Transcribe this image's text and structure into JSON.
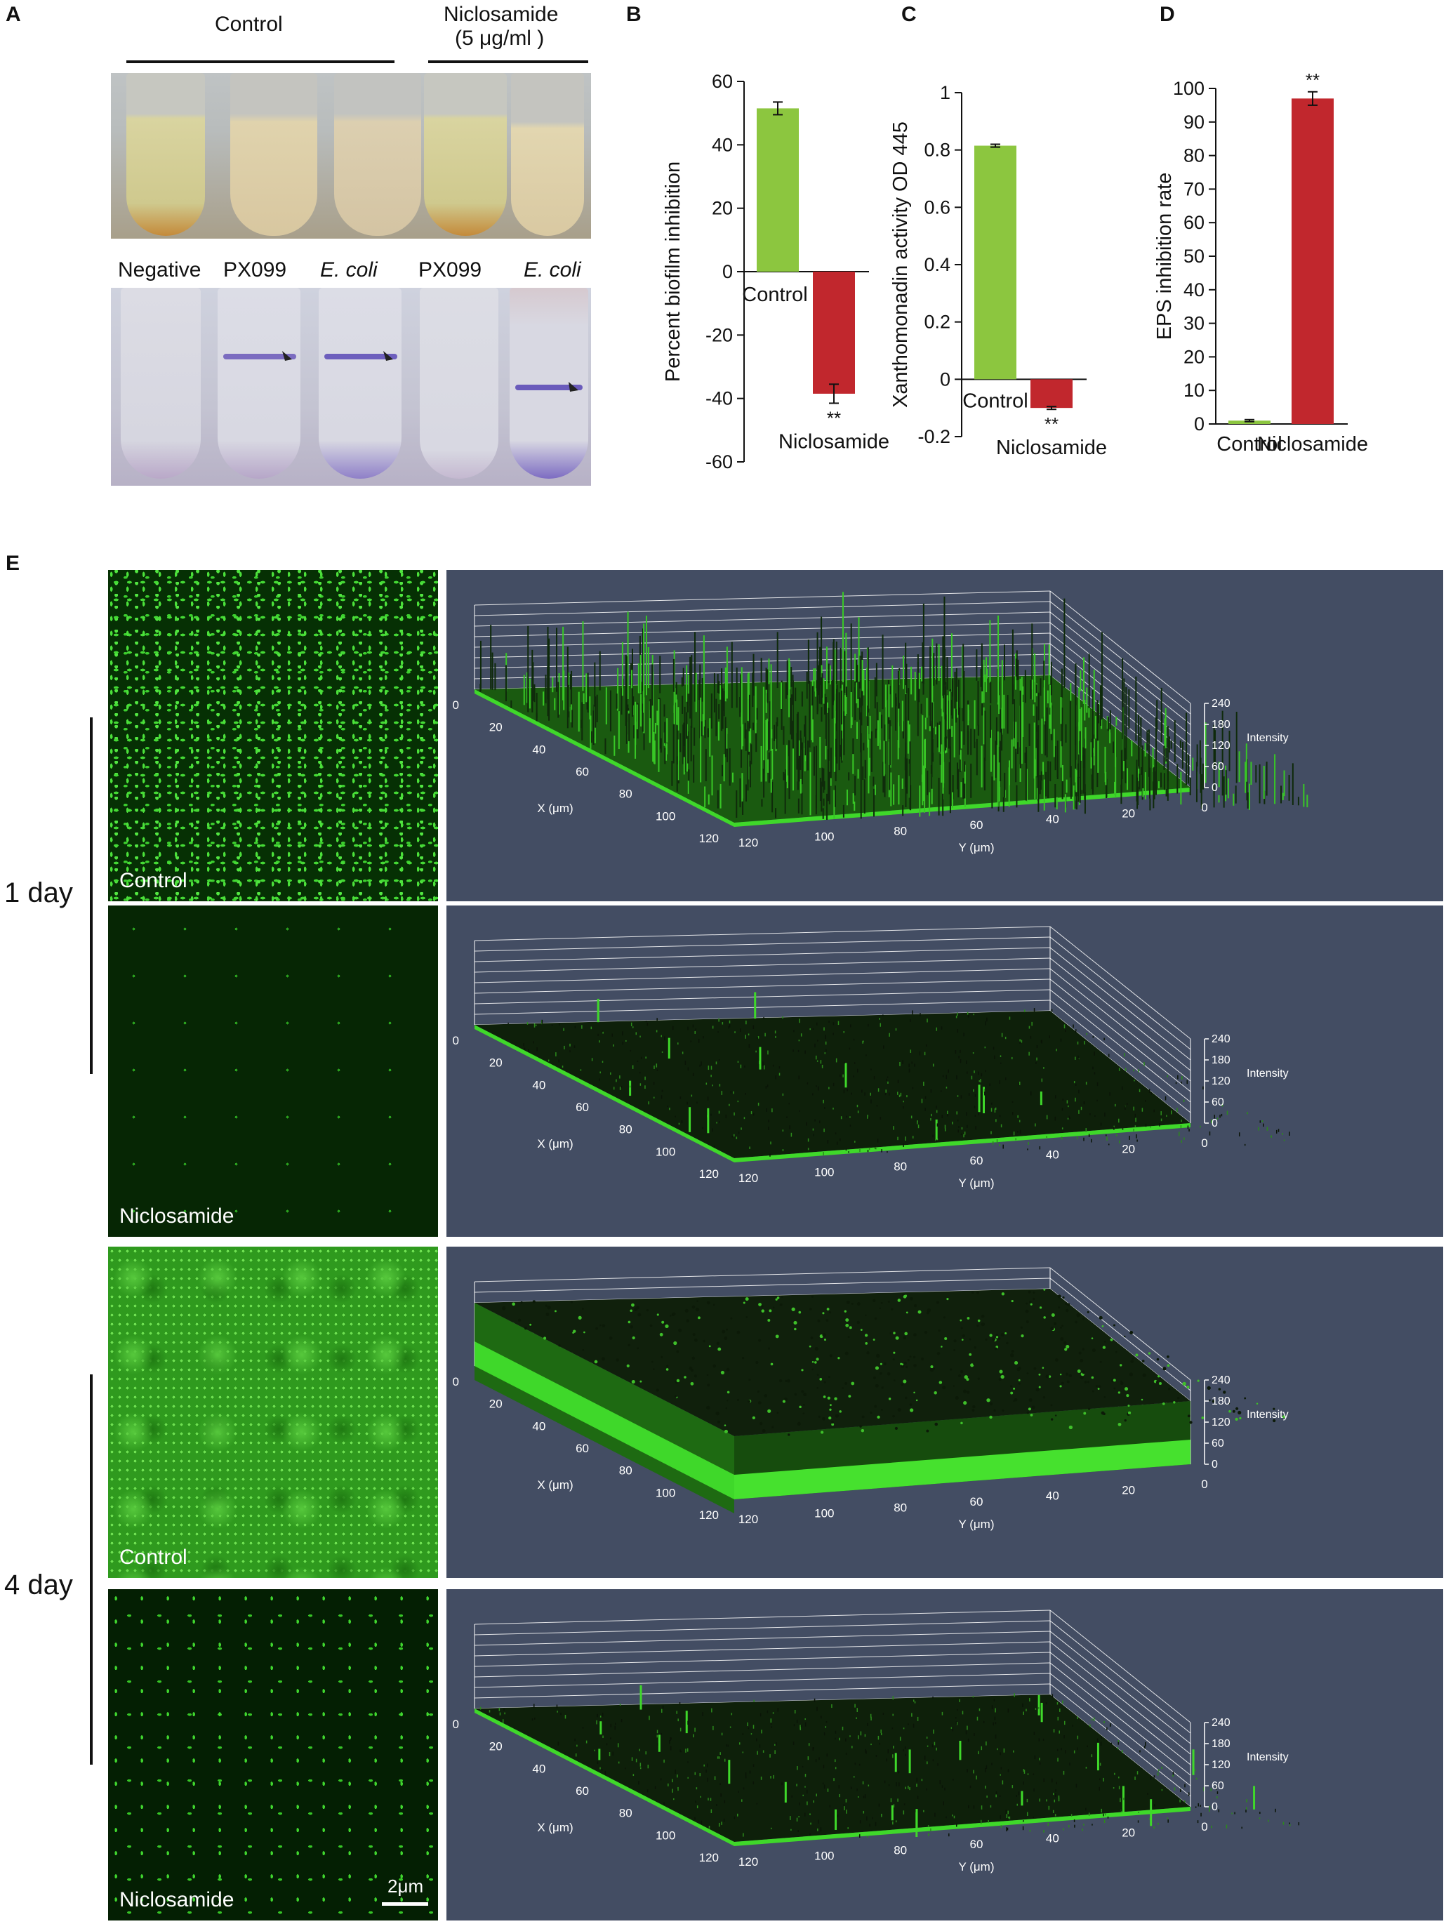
{
  "panels": {
    "A": {
      "letter": "A",
      "header_control": "Control",
      "header_treat_line1": "Niclosamide",
      "header_treat_line2": "(5 μg/ml )",
      "tube_labels": [
        "Negative",
        "PX099",
        "E. coli",
        "PX099",
        "E. coli"
      ]
    },
    "B": {
      "letter": "B"
    },
    "C": {
      "letter": "C"
    },
    "D": {
      "letter": "D"
    },
    "E": {
      "letter": "E",
      "day1_label": "1 day",
      "day4_label": "4 day",
      "image_labels": [
        "Control",
        "Niclosamide",
        "Control",
        "Niclosamide"
      ],
      "scale_bar": "2μm",
      "x_axis_label": "X (μm)",
      "y_axis_label": "Y (μm)",
      "intensity_label": "Intensity",
      "x_ticks": [
        "0",
        "20",
        "40",
        "60",
        "80",
        "100",
        "120"
      ],
      "y_ticks": [
        "120",
        "100",
        "80",
        "60",
        "40",
        "20",
        "0"
      ],
      "intensity_ticks": [
        "240",
        "180",
        "120",
        "60",
        "0"
      ]
    }
  },
  "chart_data": [
    {
      "panel": "B",
      "type": "bar",
      "ylabel": "Percent biofilm inhibition",
      "categories": [
        "Control",
        "Niclosamide"
      ],
      "values": [
        51.5,
        -38.5
      ],
      "errors": [
        2,
        3
      ],
      "significance": [
        "",
        "**"
      ],
      "colors": [
        "#8cc63f",
        "#c1272d"
      ],
      "ylim": [
        -60,
        60
      ],
      "yticks": [
        "60",
        "40",
        "20",
        "0",
        "-20",
        "-40",
        "-60"
      ]
    },
    {
      "panel": "C",
      "type": "bar",
      "ylabel": "Xanthomonadin activity OD 445",
      "categories": [
        "Control",
        "Niclosamide"
      ],
      "values": [
        0.815,
        -0.1
      ],
      "errors": [
        0.005,
        0.005
      ],
      "significance": [
        "",
        "**"
      ],
      "colors": [
        "#8cc63f",
        "#c1272d"
      ],
      "ylim": [
        -0.2,
        1
      ],
      "yticks": [
        "1",
        "0.8",
        "0.6",
        "0.4",
        "0.2",
        "0",
        "-0.2"
      ]
    },
    {
      "panel": "D",
      "type": "bar",
      "ylabel": "EPS inhibition rate",
      "categories": [
        "Control",
        "Niclosamide"
      ],
      "values": [
        1,
        97
      ],
      "errors": [
        0.3,
        2
      ],
      "significance": [
        "",
        "**"
      ],
      "colors": [
        "#8cc63f",
        "#c1272d"
      ],
      "ylim": [
        0,
        100
      ],
      "yticks": [
        "100",
        "90",
        "80",
        "70",
        "60",
        "50",
        "40",
        "30",
        "20",
        "10",
        "0"
      ]
    }
  ]
}
